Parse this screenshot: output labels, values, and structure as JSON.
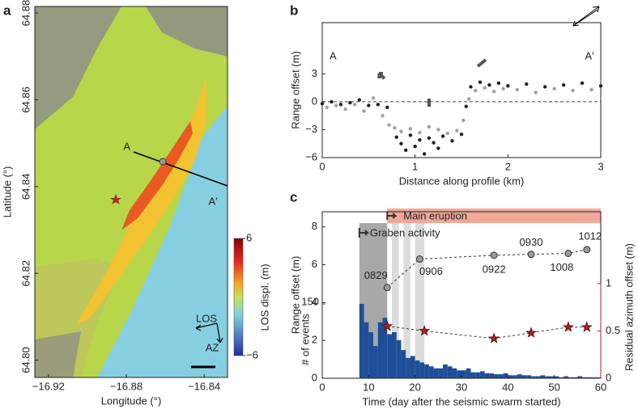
{
  "chart_data": [
    {
      "type": "map",
      "panel": "a",
      "xlabel": "Longitude (°)",
      "ylabel": "Latitude (°)",
      "xlim": [
        -16.927,
        -16.828
      ],
      "ylim": [
        64.796,
        64.8815
      ],
      "xticks": [
        {
          "value": -16.92,
          "label": "−16.92"
        },
        {
          "value": -16.88,
          "label": "−16.88"
        },
        {
          "value": -16.84,
          "label": "−16.84"
        }
      ],
      "yticks": [
        {
          "value": 64.8,
          "label": "64.80"
        },
        {
          "value": 64.82,
          "label": "64.82"
        },
        {
          "value": 64.84,
          "label": "64.84"
        },
        {
          "value": 64.86,
          "label": "64.86"
        },
        {
          "value": 64.88,
          "label": "64.88"
        }
      ],
      "colorbar": {
        "label": "LOS displ. (m)",
        "lim": [
          -6,
          6
        ],
        "ticks": [
          6,
          {
            "value": -6,
            "label": "−6"
          }
        ]
      },
      "annotations": [
        "A",
        "A′",
        "LOS",
        "AZ"
      ]
    },
    {
      "type": "scatter",
      "panel": "b",
      "xlabel": "Distance along profile (km)",
      "ylabel": "Range offset (m)",
      "xlim": [
        0,
        3
      ],
      "ylim": [
        -6,
        8.5
      ],
      "xticks": [
        0,
        1,
        2,
        3
      ],
      "yticks": [
        3,
        0,
        {
          "value": -3,
          "label": "−3"
        },
        {
          "value": -6,
          "label": "−6"
        }
      ],
      "annotations": [
        "A",
        "A′"
      ],
      "series": [
        {
          "color": "#222222",
          "x": [
            0,
            0.1,
            0.2,
            0.3,
            0.4,
            0.5,
            0.6,
            0.7,
            0.8,
            0.85,
            0.9,
            0.95,
            1.0,
            1.05,
            1.1,
            1.15,
            1.2,
            1.25,
            1.3,
            1.4,
            1.5,
            1.55,
            1.6,
            1.7,
            1.8,
            1.9,
            2.0,
            2.2,
            2.4,
            2.6,
            2.8,
            3.0
          ],
          "values": [
            -0.2,
            0,
            -0.3,
            -0.1,
            0.2,
            -0.4,
            -0.3,
            -0.6,
            -3.8,
            -4.5,
            -5.2,
            -3.6,
            -4.8,
            -4.1,
            -5.6,
            -3.9,
            -4.4,
            -5.0,
            -3.7,
            -4.2,
            -3.5,
            -0.5,
            1.6,
            2.1,
            1.8,
            2.0,
            1.7,
            1.9,
            1.6,
            1.8,
            2.0,
            1.7
          ]
        },
        {
          "color": "#a0a0a0",
          "x": [
            0.05,
            0.15,
            0.25,
            0.35,
            0.45,
            0.55,
            0.65,
            0.72,
            0.78,
            0.85,
            0.95,
            1.05,
            1.15,
            1.25,
            1.35,
            1.45,
            1.52,
            1.58,
            1.65,
            1.75,
            1.85,
            1.95,
            2.1,
            2.3,
            2.5,
            2.7,
            2.9
          ],
          "values": [
            -0.6,
            -0.4,
            -0.8,
            -0.3,
            -1.0,
            0.4,
            -1.5,
            -2.5,
            -2.8,
            -3.2,
            -2.9,
            -3.3,
            -2.7,
            -3.0,
            -3.4,
            -3.1,
            -2.0,
            0.3,
            1.2,
            1.5,
            1.1,
            1.4,
            1.3,
            1.0,
            1.4,
            1.2,
            1.3
          ]
        }
      ]
    },
    {
      "type": "combo",
      "panel": "c",
      "xlabel": "Time (day after the seismic swarm started)",
      "ylabel": "Range offset (m)",
      "y2label": "Residual azimuth offset (m)",
      "y3label": "# of events",
      "xlim": [
        0,
        60
      ],
      "ylim": [
        0,
        8.8
      ],
      "y2lim": [
        0,
        1.76
      ],
      "y3lim": [
        0,
        336
      ],
      "xticks": [
        0,
        10,
        20,
        30,
        40,
        50,
        60
      ],
      "yticks": [
        0,
        2,
        4,
        6,
        8
      ],
      "y2ticks": [
        0,
        0.5,
        1
      ],
      "y3ticks": [
        150
      ],
      "periods": [
        {
          "label": "Main eruption",
          "start": 14,
          "end": 60,
          "color": "#f0a898"
        },
        {
          "label": "Graben activity",
          "start": 8,
          "end": 14,
          "color": "#a8a8a8"
        }
      ],
      "light_bands": [
        [
          15,
          16.5
        ],
        [
          17.5,
          19
        ],
        [
          20,
          22
        ]
      ],
      "series": [
        {
          "name": "Range offset",
          "color": "#999999",
          "x": [
            14,
            21,
            37,
            45,
            53,
            57
          ],
          "values": [
            4.8,
            6.3,
            6.5,
            6.55,
            6.6,
            6.8
          ],
          "value_labels": [
            "0829",
            "0906",
            "0922",
            "0930",
            "1008",
            "1012"
          ]
        },
        {
          "name": "Residual azimuth offset",
          "axis": "y2",
          "color": "#b22222",
          "x": [
            14,
            22,
            37,
            45,
            53,
            57
          ],
          "values": [
            0.55,
            0.5,
            0.42,
            0.48,
            0.54,
            0.54
          ]
        },
        {
          "name": "# of events",
          "axis": "y3",
          "color": "#1f4e99",
          "bins": [
            8,
            9,
            10,
            11,
            12,
            13,
            14,
            15,
            16,
            17,
            18,
            19,
            20,
            21,
            22,
            23,
            24,
            25,
            26,
            27,
            28,
            29,
            30,
            31,
            32,
            33,
            34,
            35,
            36,
            37,
            38,
            39,
            40,
            41,
            42,
            43,
            44,
            45,
            46,
            47,
            48,
            49,
            50,
            51,
            52,
            53,
            54,
            55,
            56,
            57,
            58,
            59,
            60
          ],
          "values": [
            150,
            113,
            93,
            65,
            113,
            122,
            89,
            93,
            77,
            57,
            41,
            45,
            36,
            32,
            28,
            24,
            20,
            20,
            28,
            24,
            20,
            16,
            16,
            20,
            12,
            12,
            14,
            10,
            10,
            8,
            8,
            10,
            6,
            6,
            8,
            6,
            6,
            4,
            4,
            6,
            4,
            4,
            4,
            2,
            4,
            2,
            2,
            4,
            2,
            2,
            2,
            2
          ]
        }
      ]
    }
  ]
}
